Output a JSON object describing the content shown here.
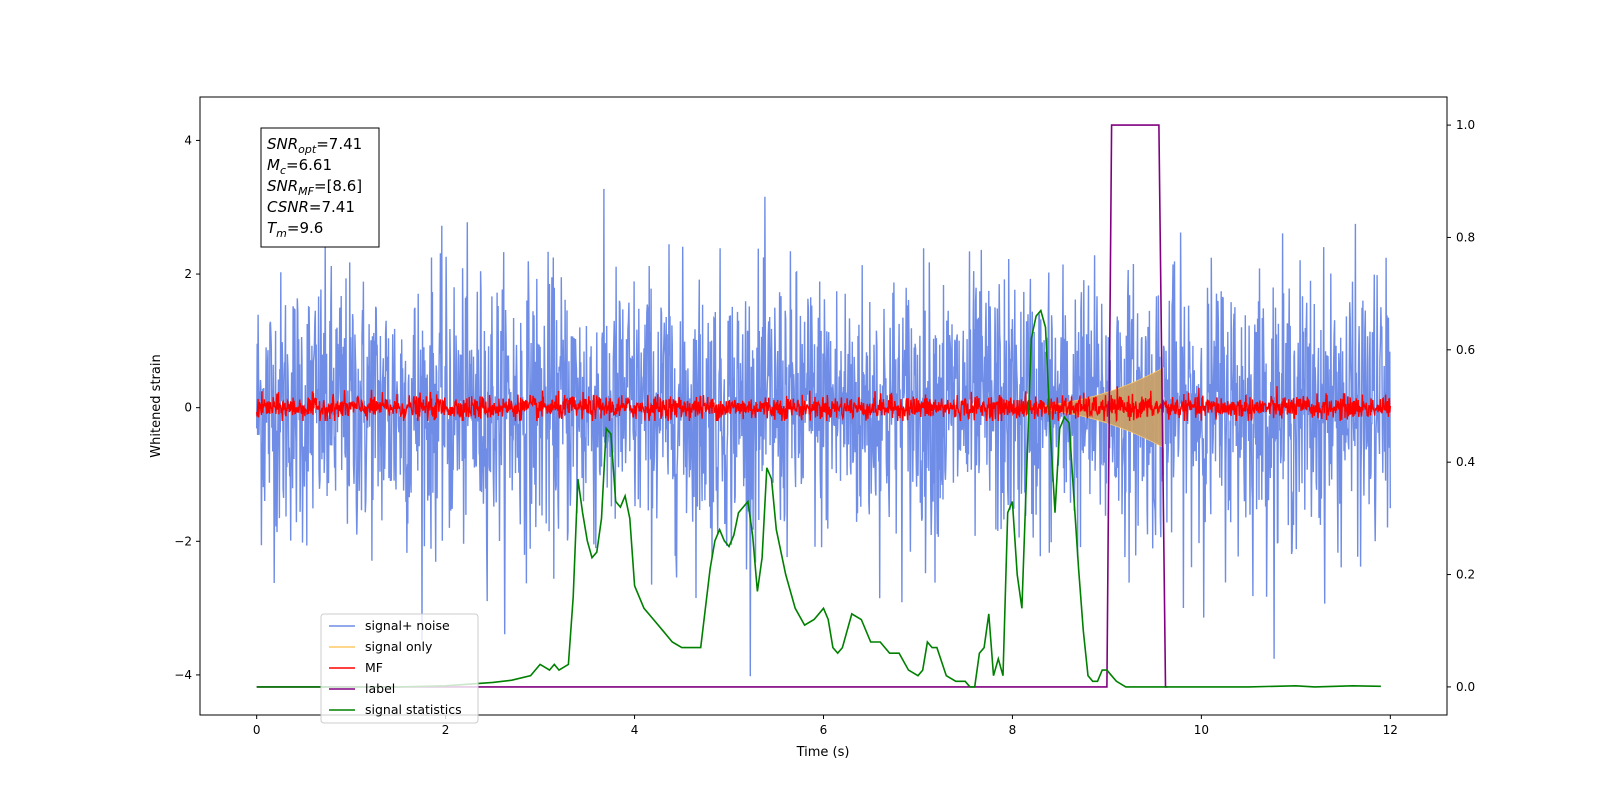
{
  "chart_data": {
    "type": "line",
    "xlabel": "Time (s)",
    "ylabel": "Whitened strain",
    "xlim": [
      -0.6,
      12.6
    ],
    "ylim": [
      -4.6,
      4.65
    ],
    "y2lim": [
      -0.05,
      1.05
    ],
    "grid": false,
    "legend_position": "bottom-left",
    "x_ticks": [
      0,
      2,
      4,
      6,
      8,
      10,
      12
    ],
    "y_ticks": [
      4,
      2,
      0,
      -2,
      -4
    ],
    "y2_ticks": [
      1.0,
      0.8,
      0.6,
      0.4,
      0.2,
      0.0
    ],
    "x_tick_labels": [
      "0",
      "2",
      "4",
      "6",
      "8",
      "10",
      "12"
    ],
    "y_tick_labels": [
      "4",
      "2",
      "0",
      "−2",
      "−4"
    ],
    "y2_tick_labels": [
      "1.0",
      "0.8",
      "0.6",
      "0.4",
      "0.2",
      "0.0"
    ],
    "info_box": [
      {
        "sym": "SNR",
        "sub": "opt",
        "value": "=7.41"
      },
      {
        "sym": "M",
        "sub": "c",
        "value": "=6.61"
      },
      {
        "sym": "SNR",
        "sub": "MF",
        "value": "=[8.6]"
      },
      {
        "sym": "CSNR",
        "sub": "",
        "value": "=7.41"
      },
      {
        "sym": "T",
        "sub": "m",
        "value": "=9.6"
      }
    ],
    "series": [
      {
        "name": "signal+ noise",
        "color": "#6f8de6",
        "kind": "noise",
        "amplitude_sd": 1.0,
        "x_range": [
          0,
          12
        ]
      },
      {
        "name": "signal only",
        "color": "#ffc966",
        "kind": "chirp",
        "fill_color": "#c9a06a",
        "start": 7.9,
        "end": 9.6,
        "peak_amplitude": 0.6
      },
      {
        "name": "MF",
        "color": "#ff0000",
        "kind": "noise",
        "amplitude_sd": 0.09,
        "x_range": [
          0,
          12
        ]
      },
      {
        "name": "label",
        "color": "#800080",
        "kind": "step",
        "axis": "right",
        "x": [
          0,
          9.0,
          9.05,
          9.55,
          9.62,
          9.64
        ],
        "y": [
          0,
          0,
          1.0,
          1.0,
          0,
          0
        ]
      },
      {
        "name": "signal statistics",
        "color": "#008000",
        "kind": "line",
        "axis": "right",
        "x": [
          0,
          0.2,
          0.5,
          1.0,
          1.5,
          2.0,
          2.5,
          2.7,
          2.9,
          3.0,
          3.05,
          3.1,
          3.15,
          3.2,
          3.3,
          3.35,
          3.4,
          3.45,
          3.5,
          3.55,
          3.6,
          3.65,
          3.7,
          3.75,
          3.8,
          3.85,
          3.9,
          3.95,
          4.0,
          4.1,
          4.2,
          4.3,
          4.4,
          4.5,
          4.6,
          4.7,
          4.8,
          4.85,
          4.9,
          4.95,
          5.0,
          5.05,
          5.1,
          5.15,
          5.2,
          5.25,
          5.3,
          5.35,
          5.4,
          5.45,
          5.5,
          5.6,
          5.7,
          5.8,
          5.9,
          6.0,
          6.05,
          6.1,
          6.15,
          6.2,
          6.3,
          6.4,
          6.5,
          6.6,
          6.7,
          6.8,
          6.9,
          7.0,
          7.05,
          7.1,
          7.15,
          7.2,
          7.3,
          7.4,
          7.5,
          7.55,
          7.6,
          7.65,
          7.7,
          7.75,
          7.8,
          7.85,
          7.9,
          7.95,
          8.0,
          8.05,
          8.1,
          8.15,
          8.2,
          8.25,
          8.3,
          8.35,
          8.4,
          8.45,
          8.5,
          8.55,
          8.6,
          8.65,
          8.7,
          8.75,
          8.8,
          8.85,
          8.9,
          8.95,
          9.0,
          9.05,
          9.1,
          9.2,
          9.3,
          9.5,
          9.7,
          10.0,
          10.5,
          11.0,
          11.2,
          11.6,
          11.9
        ],
        "y": [
          0.0,
          0.0,
          0.0,
          0.0,
          0.0,
          0.002,
          0.008,
          0.012,
          0.02,
          0.04,
          0.035,
          0.03,
          0.04,
          0.03,
          0.04,
          0.16,
          0.37,
          0.31,
          0.26,
          0.23,
          0.24,
          0.3,
          0.46,
          0.45,
          0.33,
          0.32,
          0.34,
          0.3,
          0.18,
          0.14,
          0.12,
          0.1,
          0.08,
          0.07,
          0.07,
          0.07,
          0.21,
          0.26,
          0.28,
          0.26,
          0.25,
          0.27,
          0.31,
          0.32,
          0.33,
          0.27,
          0.17,
          0.23,
          0.39,
          0.37,
          0.28,
          0.2,
          0.14,
          0.11,
          0.12,
          0.14,
          0.12,
          0.07,
          0.06,
          0.07,
          0.13,
          0.12,
          0.08,
          0.08,
          0.06,
          0.06,
          0.03,
          0.02,
          0.03,
          0.08,
          0.07,
          0.07,
          0.02,
          0.01,
          0.01,
          0.0,
          0.0,
          0.06,
          0.07,
          0.13,
          0.02,
          0.05,
          0.02,
          0.31,
          0.33,
          0.2,
          0.14,
          0.38,
          0.62,
          0.66,
          0.67,
          0.64,
          0.46,
          0.31,
          0.46,
          0.48,
          0.47,
          0.34,
          0.21,
          0.1,
          0.02,
          0.01,
          0.01,
          0.03,
          0.03,
          0.02,
          0.01,
          0.0,
          0.0,
          0.0,
          0.0,
          0.0,
          0.0,
          0.002,
          0.0,
          0.002,
          0.001
        ]
      }
    ]
  }
}
